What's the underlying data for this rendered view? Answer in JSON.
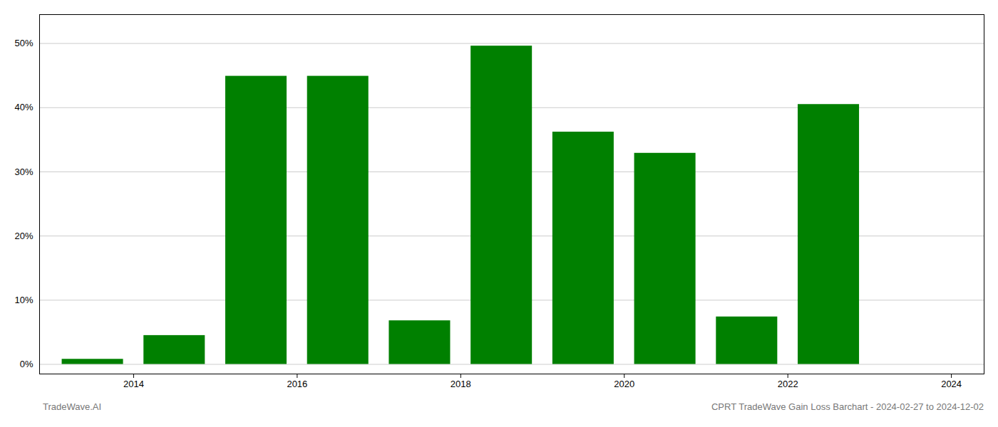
{
  "chart_data": {
    "type": "bar",
    "x": [
      2014,
      2015,
      2016,
      2017,
      2018,
      2019,
      2020,
      2021,
      2022,
      2023,
      2024
    ],
    "values": [
      0.008,
      0.045,
      0.449,
      0.449,
      0.068,
      0.496,
      0.362,
      0.329,
      0.074,
      0.405,
      0.0
    ],
    "color": "#008000",
    "xlim": [
      2013.35,
      2024.9
    ],
    "xticks": [
      {
        "value": 2014.5,
        "label": "2014"
      },
      {
        "value": 2016.5,
        "label": "2016"
      },
      {
        "value": 2018.5,
        "label": "2018"
      },
      {
        "value": 2020.5,
        "label": "2020"
      },
      {
        "value": 2022.5,
        "label": "2022"
      },
      {
        "value": 2024.5,
        "label": "2024"
      }
    ],
    "ylim": [
      -0.015,
      0.545
    ],
    "yticks": [
      {
        "value": 0.0,
        "label": "0%"
      },
      {
        "value": 0.1,
        "label": "10%"
      },
      {
        "value": 0.2,
        "label": "20%"
      },
      {
        "value": 0.3,
        "label": "30%"
      },
      {
        "value": 0.4,
        "label": "40%"
      },
      {
        "value": 0.5,
        "label": "50%"
      }
    ],
    "grid": true,
    "annotations": [
      "TradeWave.AI",
      "CPRT TradeWave Gain Loss Barchart - 2024-02-27 to 2024-12-02"
    ]
  }
}
